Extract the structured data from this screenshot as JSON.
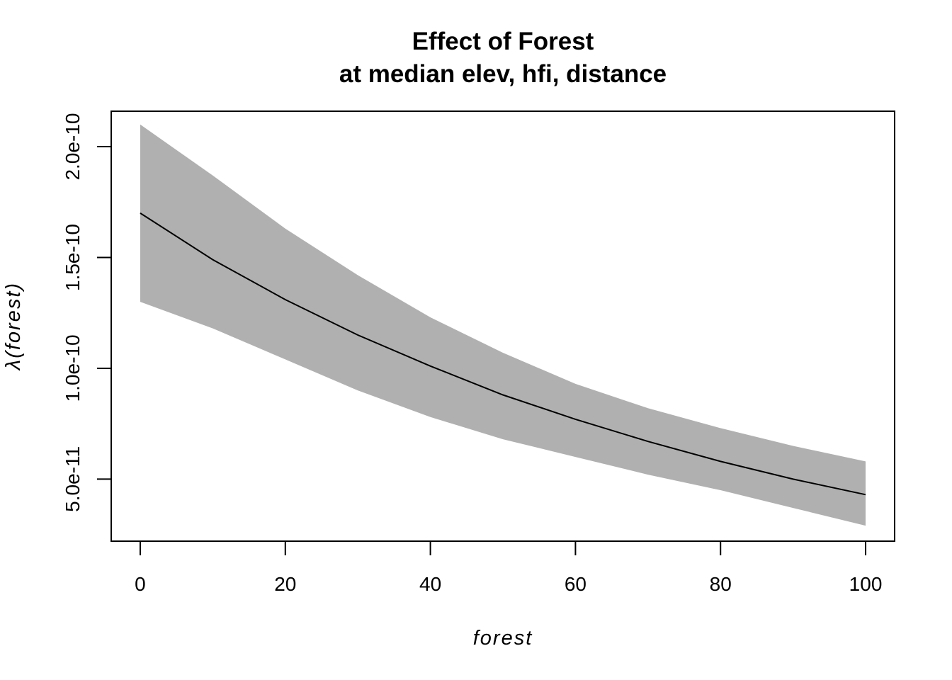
{
  "chart_data": {
    "type": "line",
    "title_line1": "Effect of Forest",
    "title_line2": "at median elev, hfi, distance",
    "xlabel": "forest",
    "ylabel": "λ(forest)",
    "xlim": [
      -4,
      104
    ],
    "ylim": [
      2.2e-11,
      2.16e-10
    ],
    "x_ticks": [
      0,
      20,
      40,
      60,
      80,
      100
    ],
    "x_tick_labels": [
      "0",
      "20",
      "40",
      "60",
      "80",
      "100"
    ],
    "y_ticks": [
      5e-11,
      1e-10,
      1.5e-10,
      2e-10
    ],
    "y_tick_labels": [
      "5.0e-11",
      "1.0e-10",
      "1.5e-10",
      "2.0e-10"
    ],
    "grid": false,
    "legend": "none",
    "band_color": "#b0b0b0",
    "line_color": "#000000",
    "x": [
      0,
      10,
      20,
      30,
      40,
      50,
      60,
      70,
      80,
      90,
      100
    ],
    "series": [
      {
        "values": [
          1.7e-10,
          1.49e-10,
          1.31e-10,
          1.15e-10,
          1.01e-10,
          8.8e-11,
          7.7e-11,
          6.7e-11,
          5.8e-11,
          5e-11,
          4.3e-11
        ]
      }
    ],
    "band_upper": [
      2.1e-10,
      1.87e-10,
      1.63e-10,
      1.42e-10,
      1.23e-10,
      1.07e-10,
      9.3e-11,
      8.2e-11,
      7.3e-11,
      6.5e-11,
      5.8e-11
    ],
    "band_lower": [
      1.3e-10,
      1.18e-10,
      1.04e-10,
      9e-11,
      7.8e-11,
      6.8e-11,
      6e-11,
      5.2e-11,
      4.5e-11,
      3.7e-11,
      2.9e-11
    ]
  }
}
